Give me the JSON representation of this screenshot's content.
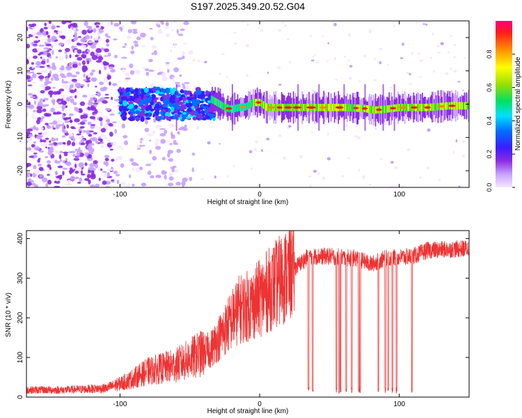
{
  "title": "S197.2025.349.20.52.G04",
  "colorbar": {
    "label": "Normalized spectral amplitude",
    "ticks": [
      {
        "v": 0.0,
        "label": "0.0"
      },
      {
        "v": 0.2,
        "label": "0.2"
      },
      {
        "v": 0.4,
        "label": "0.4"
      },
      {
        "v": 0.6,
        "label": "0.6"
      },
      {
        "v": 0.8,
        "label": "0.8"
      }
    ]
  },
  "chart_data": [
    {
      "type": "heatmap",
      "xlabel": "Height of straight line (km)",
      "ylabel": "Frequency (Hz)",
      "xlim": [
        -167,
        150
      ],
      "ylim": [
        -25,
        25
      ],
      "xticks": [
        {
          "v": -100,
          "label": "-100"
        },
        {
          "v": 0,
          "label": "0"
        },
        {
          "v": 100,
          "label": "100"
        }
      ],
      "yticks": [
        {
          "v": -20,
          "label": "-20"
        },
        {
          "v": -10,
          "label": "-10"
        },
        {
          "v": 0,
          "label": "0"
        },
        {
          "v": 10,
          "label": "10"
        },
        {
          "v": 20,
          "label": "20"
        }
      ],
      "ridge": [
        {
          "x": -35,
          "y": 1.5
        },
        {
          "x": -30,
          "y": 0.3
        },
        {
          "x": -25,
          "y": -1.0
        },
        {
          "x": -20,
          "y": -1.5
        },
        {
          "x": -15,
          "y": -1.0
        },
        {
          "x": -10,
          "y": -0.8
        },
        {
          "x": -5,
          "y": 0.5
        },
        {
          "x": 0,
          "y": 0.5
        },
        {
          "x": 5,
          "y": -1.0
        },
        {
          "x": 20,
          "y": -1.0
        },
        {
          "x": 40,
          "y": -1.0
        },
        {
          "x": 60,
          "y": -1.0
        },
        {
          "x": 75,
          "y": -1.3
        },
        {
          "x": 82,
          "y": -1.8
        },
        {
          "x": 90,
          "y": -1.5
        },
        {
          "x": 100,
          "y": -1.0
        },
        {
          "x": 120,
          "y": -1.0
        },
        {
          "x": 135,
          "y": -0.5
        },
        {
          "x": 150,
          "y": -0.5
        }
      ]
    },
    {
      "type": "line",
      "xlabel": "Height of straight line (km)",
      "ylabel": "SNR (10 * v/v)",
      "xlim": [
        -167,
        150
      ],
      "ylim": [
        0,
        420
      ],
      "xticks": [
        {
          "v": -100,
          "label": "-100"
        },
        {
          "v": 0,
          "label": "0"
        },
        {
          "v": 100,
          "label": "100"
        }
      ],
      "yticks": [
        {
          "v": 0,
          "label": "0"
        },
        {
          "v": 100,
          "label": "100"
        },
        {
          "v": 200,
          "label": "200"
        },
        {
          "v": 300,
          "label": "300"
        },
        {
          "v": 400,
          "label": "400"
        }
      ],
      "color": "#ee3333",
      "trend": [
        {
          "x": -167,
          "y": 18
        },
        {
          "x": -140,
          "y": 18
        },
        {
          "x": -110,
          "y": 22
        },
        {
          "x": -95,
          "y": 40
        },
        {
          "x": -80,
          "y": 65
        },
        {
          "x": -60,
          "y": 80
        },
        {
          "x": -45,
          "y": 105
        },
        {
          "x": -35,
          "y": 120
        },
        {
          "x": -25,
          "y": 170
        },
        {
          "x": -15,
          "y": 220
        },
        {
          "x": -5,
          "y": 235
        },
        {
          "x": 5,
          "y": 265
        },
        {
          "x": 15,
          "y": 295
        },
        {
          "x": 25,
          "y": 325
        },
        {
          "x": 35,
          "y": 355
        },
        {
          "x": 50,
          "y": 355
        },
        {
          "x": 70,
          "y": 350
        },
        {
          "x": 80,
          "y": 335
        },
        {
          "x": 90,
          "y": 350
        },
        {
          "x": 110,
          "y": 355
        },
        {
          "x": 120,
          "y": 370
        },
        {
          "x": 150,
          "y": 375
        }
      ],
      "dropouts": [
        35,
        38,
        55,
        57,
        58,
        62,
        66,
        71,
        72,
        85,
        90,
        92,
        95,
        98,
        109
      ]
    }
  ]
}
